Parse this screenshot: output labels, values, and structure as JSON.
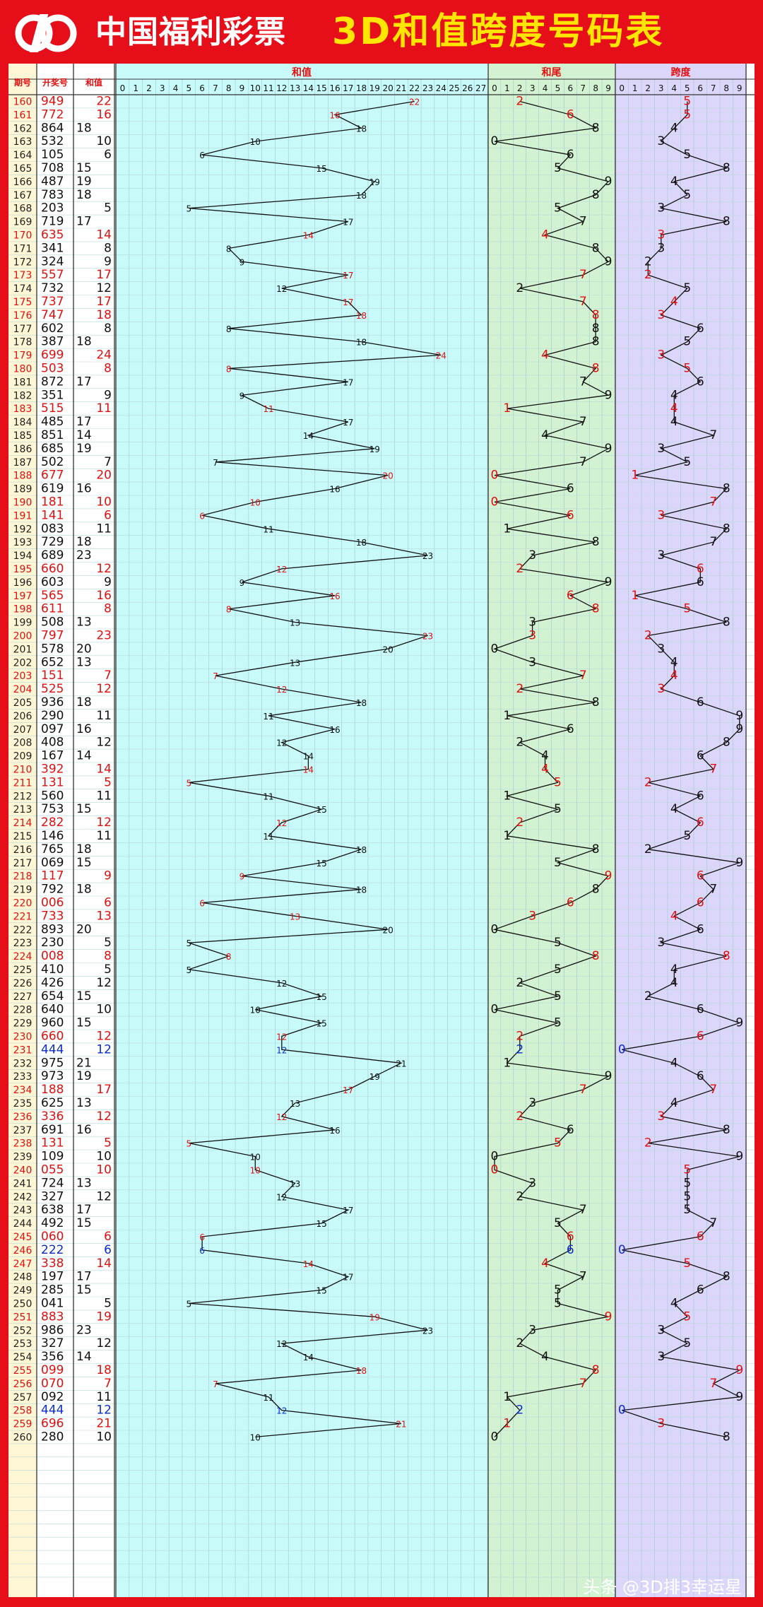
{
  "header": {
    "org_name": "中国福利彩票",
    "table_title": "3D和值跨度号码表",
    "logo": "welfare-lottery-logo"
  },
  "colors": {
    "brand_red": "#e60f19",
    "title_yellow": "#ffe600",
    "hezhi_bg": "#c8fafa",
    "hewei_bg": "#d2f2d2",
    "kuadu_bg": "#dcd7fa",
    "left_bg": "#fff6d5",
    "red_text": "#e01010",
    "blue_text": "#0a2bd0"
  },
  "table": {
    "col_headers": [
      "期号",
      "开奖号",
      "和值"
    ],
    "section_titles": [
      "和值",
      "和尾",
      "跨度"
    ],
    "hezhi_ticks": [
      "0",
      "1",
      "2",
      "3",
      "4",
      "5",
      "6",
      "7",
      "8",
      "9",
      "10",
      "11",
      "12",
      "13",
      "14",
      "15",
      "16",
      "17",
      "18",
      "19",
      "20",
      "21",
      "22",
      "23",
      "24",
      "25",
      "26",
      "27"
    ],
    "hewei_ticks": [
      "0",
      "1",
      "2",
      "3",
      "4",
      "5",
      "6",
      "7",
      "8",
      "9"
    ],
    "kuadu_ticks": [
      "0",
      "1",
      "2",
      "3",
      "4",
      "5",
      "6",
      "7",
      "8",
      "9"
    ]
  },
  "chart_data": {
    "type": "line",
    "x_label": "期号",
    "periods": [
      160,
      161,
      162,
      163,
      164,
      165,
      166,
      167,
      168,
      169,
      170,
      171,
      172,
      173,
      174,
      175,
      176,
      177,
      178,
      179,
      180,
      181,
      182,
      183,
      184,
      185,
      186,
      187,
      188,
      189,
      190,
      191,
      192,
      193,
      194,
      195,
      196,
      197,
      198,
      199,
      200,
      201,
      202,
      203,
      204,
      205,
      206,
      207,
      208,
      209,
      210,
      211,
      212,
      213,
      214,
      215,
      216,
      217,
      218,
      219,
      220,
      221,
      222,
      223,
      224,
      225,
      226,
      227,
      228,
      229,
      230,
      231,
      232,
      233,
      234,
      235,
      236,
      237,
      238,
      239,
      240,
      241,
      242,
      243,
      244,
      245,
      246,
      247,
      248,
      249,
      250,
      251,
      252,
      253,
      254,
      255,
      256,
      257,
      258,
      259,
      260
    ],
    "draws": [
      "949",
      "772",
      "864",
      "532",
      "105",
      "708",
      "487",
      "783",
      "203",
      "719",
      "635",
      "341",
      "324",
      "557",
      "732",
      "737",
      "747",
      "602",
      "387",
      "699",
      "503",
      "872",
      "351",
      "515",
      "485",
      "851",
      "685",
      "502",
      "677",
      "619",
      "181",
      "141",
      "083",
      "729",
      "689",
      "660",
      "603",
      "565",
      "611",
      "508",
      "797",
      "578",
      "652",
      "151",
      "525",
      "936",
      "290",
      "097",
      "408",
      "167",
      "392",
      "131",
      "560",
      "753",
      "282",
      "146",
      "765",
      "069",
      "117",
      "792",
      "006",
      "733",
      "893",
      "230",
      "008",
      "410",
      "426",
      "654",
      "640",
      "960",
      "660",
      "444",
      "975",
      "973",
      "188",
      "625",
      "336",
      "691",
      "131",
      "109",
      "055",
      "724",
      "327",
      "638",
      "492",
      "060",
      "222",
      "338",
      "197",
      "285",
      "041",
      "883",
      "986",
      "327",
      "356",
      "099",
      "070",
      "092",
      "444",
      "696",
      "280"
    ],
    "series": [
      {
        "name": "和值",
        "values": [
          22,
          16,
          18,
          10,
          6,
          15,
          19,
          18,
          5,
          17,
          14,
          8,
          9,
          17,
          12,
          17,
          18,
          8,
          18,
          24,
          8,
          17,
          9,
          11,
          17,
          14,
          19,
          7,
          20,
          16,
          10,
          6,
          11,
          18,
          23,
          12,
          9,
          16,
          8,
          13,
          23,
          20,
          13,
          7,
          12,
          18,
          11,
          16,
          12,
          14,
          14,
          5,
          11,
          15,
          12,
          11,
          18,
          15,
          9,
          18,
          6,
          13,
          20,
          5,
          8,
          5,
          12,
          15,
          10,
          15,
          12,
          12,
          21,
          19,
          17,
          13,
          12,
          16,
          5,
          10,
          10,
          13,
          12,
          17,
          15,
          6,
          6,
          14,
          17,
          15,
          5,
          19,
          23,
          12,
          14,
          18,
          7,
          11,
          12,
          21,
          10
        ]
      },
      {
        "name": "和尾",
        "values": [
          2,
          6,
          8,
          0,
          6,
          5,
          9,
          8,
          5,
          7,
          4,
          8,
          9,
          7,
          2,
          7,
          8,
          8,
          8,
          4,
          8,
          7,
          9,
          1,
          7,
          4,
          9,
          7,
          0,
          6,
          0,
          6,
          1,
          8,
          3,
          2,
          9,
          6,
          8,
          3,
          3,
          0,
          3,
          7,
          2,
          8,
          1,
          6,
          2,
          4,
          4,
          5,
          1,
          5,
          2,
          1,
          8,
          5,
          9,
          8,
          6,
          3,
          0,
          5,
          8,
          5,
          2,
          5,
          0,
          5,
          2,
          2,
          1,
          9,
          7,
          3,
          2,
          6,
          5,
          0,
          0,
          3,
          2,
          7,
          5,
          6,
          6,
          4,
          7,
          5,
          5,
          9,
          3,
          2,
          4,
          8,
          7,
          1,
          2,
          1,
          0
        ]
      },
      {
        "name": "跨度",
        "values": [
          5,
          5,
          4,
          3,
          5,
          8,
          4,
          5,
          3,
          8,
          3,
          3,
          2,
          2,
          5,
          4,
          3,
          6,
          5,
          3,
          5,
          6,
          4,
          4,
          4,
          7,
          3,
          5,
          1,
          8,
          7,
          3,
          8,
          7,
          3,
          6,
          6,
          1,
          5,
          8,
          2,
          3,
          4,
          4,
          3,
          6,
          9,
          9,
          8,
          6,
          7,
          2,
          6,
          4,
          6,
          5,
          2,
          9,
          6,
          7,
          6,
          4,
          6,
          3,
          8,
          4,
          4,
          2,
          6,
          9,
          6,
          0,
          4,
          6,
          7,
          4,
          3,
          8,
          2,
          9,
          5,
          5,
          5,
          5,
          7,
          6,
          0,
          5,
          8,
          6,
          4,
          5,
          3,
          5,
          3,
          9,
          7,
          9,
          0,
          3,
          8
        ]
      }
    ],
    "highlight": {
      "red_periods": [
        160,
        161,
        170,
        173,
        175,
        176,
        179,
        180,
        183,
        188,
        190,
        191,
        195,
        197,
        198,
        200,
        203,
        204,
        210,
        211,
        214,
        218,
        220,
        221,
        224,
        230,
        234,
        236,
        238,
        240,
        245,
        247,
        251,
        255,
        256,
        259
      ],
      "blue_periods": [
        231,
        246,
        258
      ]
    },
    "xlim_hezhi": [
      0,
      27
    ],
    "xlim_hewei": [
      0,
      9
    ],
    "xlim_kuadu": [
      0,
      9
    ],
    "grid": true
  },
  "watermark": "头条 @3D排3幸运星"
}
